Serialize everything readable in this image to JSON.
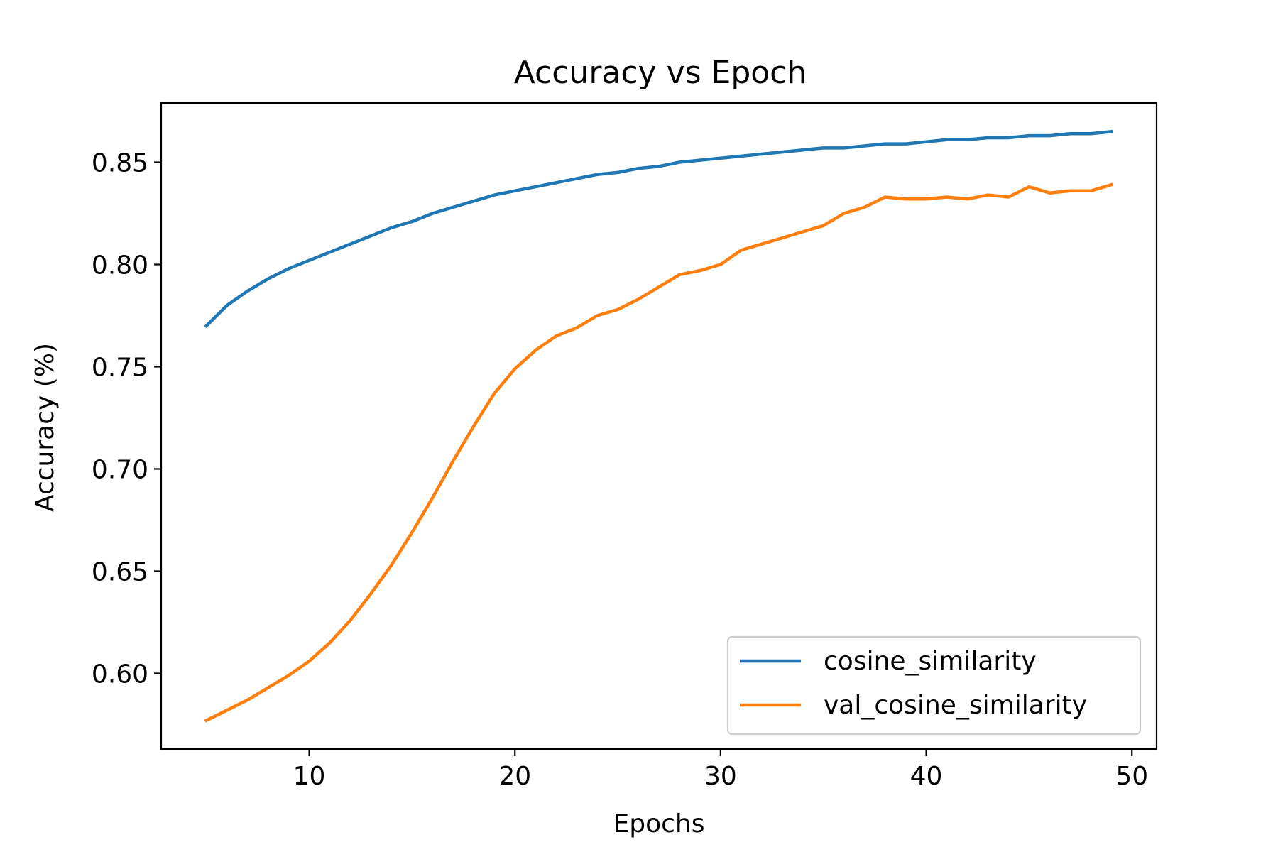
{
  "chart_data": {
    "type": "line",
    "title": "Accuracy vs Epoch",
    "xlabel": "Epochs",
    "ylabel": "Accuracy (%)",
    "xlim": [
      2.8,
      51.2
    ],
    "ylim": [
      0.563,
      0.879
    ],
    "xticks": [
      10,
      20,
      30,
      40,
      50
    ],
    "yticks": [
      0.6,
      0.65,
      0.7,
      0.75,
      0.8,
      0.85
    ],
    "xtick_labels": [
      "10",
      "20",
      "30",
      "40",
      "50"
    ],
    "ytick_labels": [
      "0.60",
      "0.65",
      "0.70",
      "0.75",
      "0.80",
      "0.85"
    ],
    "grid": false,
    "legend_position": "bottom-right",
    "x": [
      5,
      6,
      7,
      8,
      9,
      10,
      11,
      12,
      13,
      14,
      15,
      16,
      17,
      18,
      19,
      20,
      21,
      22,
      23,
      24,
      25,
      26,
      27,
      28,
      29,
      30,
      31,
      32,
      33,
      34,
      35,
      36,
      37,
      38,
      39,
      40,
      41,
      42,
      43,
      44,
      45,
      46,
      47,
      48,
      49
    ],
    "series": [
      {
        "name": "cosine_similarity",
        "color": "#1f77b4",
        "values": [
          0.77,
          0.78,
          0.787,
          0.793,
          0.798,
          0.802,
          0.806,
          0.81,
          0.814,
          0.818,
          0.821,
          0.825,
          0.828,
          0.831,
          0.834,
          0.836,
          0.838,
          0.84,
          0.842,
          0.844,
          0.845,
          0.847,
          0.848,
          0.85,
          0.851,
          0.852,
          0.853,
          0.854,
          0.855,
          0.856,
          0.857,
          0.857,
          0.858,
          0.859,
          0.859,
          0.86,
          0.861,
          0.861,
          0.862,
          0.862,
          0.863,
          0.863,
          0.864,
          0.864,
          0.865
        ]
      },
      {
        "name": "val_cosine_similarity",
        "color": "#ff7f0e",
        "values": [
          0.577,
          0.582,
          0.587,
          0.593,
          0.599,
          0.606,
          0.615,
          0.626,
          0.639,
          0.653,
          0.669,
          0.686,
          0.704,
          0.721,
          0.737,
          0.749,
          0.758,
          0.765,
          0.769,
          0.775,
          0.778,
          0.783,
          0.789,
          0.795,
          0.797,
          0.8,
          0.807,
          0.81,
          0.813,
          0.816,
          0.819,
          0.825,
          0.828,
          0.833,
          0.832,
          0.832,
          0.833,
          0.832,
          0.834,
          0.833,
          0.838,
          0.835,
          0.836,
          0.836,
          0.839
        ]
      }
    ]
  }
}
